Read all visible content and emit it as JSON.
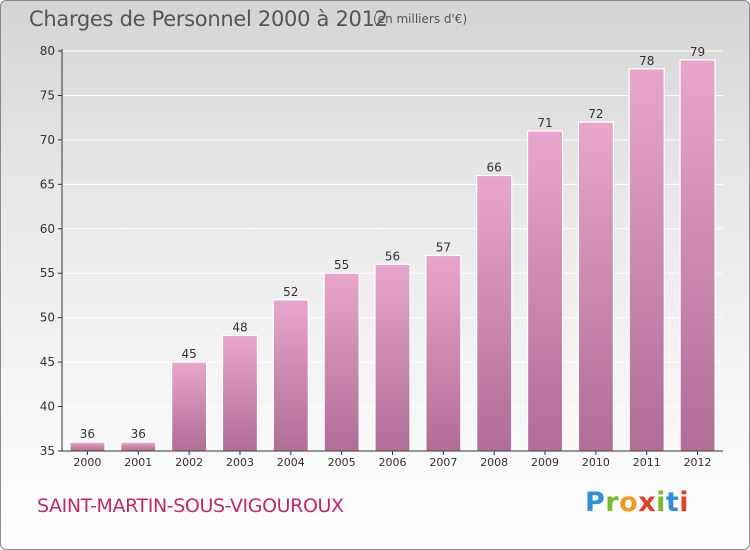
{
  "title": "Charges de Personnel 2000 à 2012",
  "subtitle": "(en milliers d'€)",
  "commune": "SAINT-MARTIN-SOUS-VIGOUROUX",
  "logo": {
    "letters": [
      "P",
      "r",
      "o",
      "x",
      "i",
      "t",
      "i"
    ],
    "colors": [
      "#2f8fd8",
      "#7ab82e",
      "#f39a1b",
      "#e0402a",
      "#7ab82e",
      "#2f8fd8",
      "#e0402a"
    ]
  },
  "colors": {
    "bar_top": "#e8a6cc",
    "bar_bottom": "#b06d95",
    "axis": "#333333",
    "grid": "#ffffff",
    "commune_text": "#c0286e"
  },
  "chart_data": {
    "type": "bar",
    "title": "Charges de Personnel 2000 à 2012",
    "subtitle": "(en milliers d'€)",
    "categories": [
      "2000",
      "2001",
      "2002",
      "2003",
      "2004",
      "2005",
      "2006",
      "2007",
      "2008",
      "2009",
      "2010",
      "2011",
      "2012"
    ],
    "values": [
      36,
      36,
      45,
      48,
      52,
      55,
      56,
      57,
      66,
      71,
      72,
      78,
      79
    ],
    "ylim": [
      35,
      80
    ],
    "yticks": [
      35,
      40,
      45,
      50,
      55,
      60,
      65,
      70,
      75,
      80
    ],
    "xlabel": "",
    "ylabel": "",
    "grid": true,
    "data_labels": true
  }
}
